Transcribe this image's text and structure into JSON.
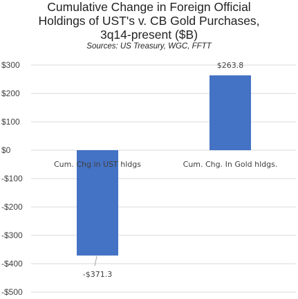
{
  "chart_data": {
    "type": "bar",
    "title_lines": [
      "Cumulative Change in Foreign Official",
      "Holdings of UST's v. CB Gold Purchases,",
      "3q14-present ($B)"
    ],
    "subtitle": "Sources:  US Treasury, WGC, FFTT",
    "categories": [
      "Cum. Chg in UST hldgs",
      "Cum. Chg. In Gold hldgs."
    ],
    "values": [
      -371.3,
      263.8
    ],
    "data_labels": [
      "-$371.3",
      "$263.8"
    ],
    "ylim": [
      -500,
      300
    ],
    "yticks": [
      300,
      200,
      100,
      0,
      -100,
      -200,
      -300,
      -400,
      -500
    ],
    "ytick_labels": [
      "$300",
      "$200",
      "$100",
      "$0",
      "-$100",
      "-$200",
      "-$300",
      "-$400",
      "-$500"
    ],
    "grid": true,
    "legend": "none",
    "bar_color": "#4472C4",
    "grid_color": "#D9D9D9"
  }
}
